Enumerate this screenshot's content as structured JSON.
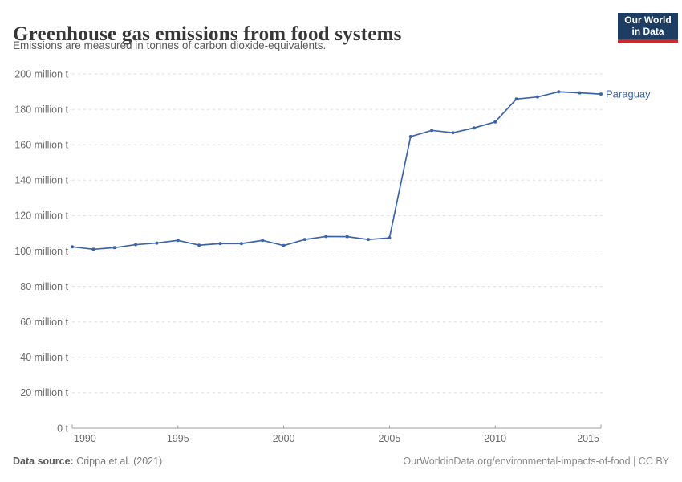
{
  "header": {
    "title": "Greenhouse gas emissions from food systems",
    "subtitle": "Emissions are measured in tonnes of carbon dioxide-equivalents.",
    "logo": {
      "line1": "Our World",
      "line2": "in Data",
      "bg_color": "#1d3d63",
      "bar_color": "#cc2a26"
    }
  },
  "chart_data": {
    "type": "line",
    "title": "Greenhouse gas emissions from food systems",
    "xlabel": "",
    "ylabel": "",
    "unit": "million t",
    "grid": true,
    "xlim": [
      1990,
      2015
    ],
    "ylim": [
      0,
      200
    ],
    "x": [
      1990,
      1991,
      1992,
      1993,
      1994,
      1995,
      1996,
      1997,
      1998,
      1999,
      2000,
      2001,
      2002,
      2003,
      2004,
      2005,
      2006,
      2007,
      2008,
      2009,
      2010,
      2011,
      2012,
      2013,
      2014,
      2015
    ],
    "series": [
      {
        "name": "Paraguay",
        "color": "#3e64a8",
        "values": [
          102.4,
          101.0,
          101.9,
          103.6,
          104.5,
          106.0,
          103.3,
          104.2,
          104.2,
          106.0,
          103.1,
          106.5,
          108.2,
          108.1,
          106.5,
          107.4,
          164.6,
          168.1,
          166.8,
          169.5,
          172.9,
          185.8,
          187.0,
          189.9,
          189.3,
          188.6
        ]
      }
    ],
    "xticks": {
      "values": [
        1990,
        1995,
        2000,
        2005,
        2010,
        2015
      ],
      "labels": [
        "1990",
        "1995",
        "2000",
        "2005",
        "2010",
        "2015"
      ]
    },
    "yticks": {
      "values": [
        0,
        20,
        40,
        60,
        80,
        100,
        120,
        140,
        160,
        180,
        200
      ],
      "labels": [
        "0 t",
        "20 million t",
        "40 million t",
        "60 million t",
        "80 million t",
        "100 million t",
        "120 million t",
        "140 million t",
        "160 million t",
        "180 million t",
        "200 million t"
      ]
    },
    "legend_position": "end-of-line label",
    "colors": {
      "grid": "#dedede",
      "axis": "#9e9e9e",
      "tick_text": "#6b6b6b"
    }
  },
  "footer": {
    "source_label": "Data source:",
    "source_value": " Crippa et al. (2021)",
    "credit": "OurWorldinData.org/environmental-impacts-of-food | CC BY"
  }
}
